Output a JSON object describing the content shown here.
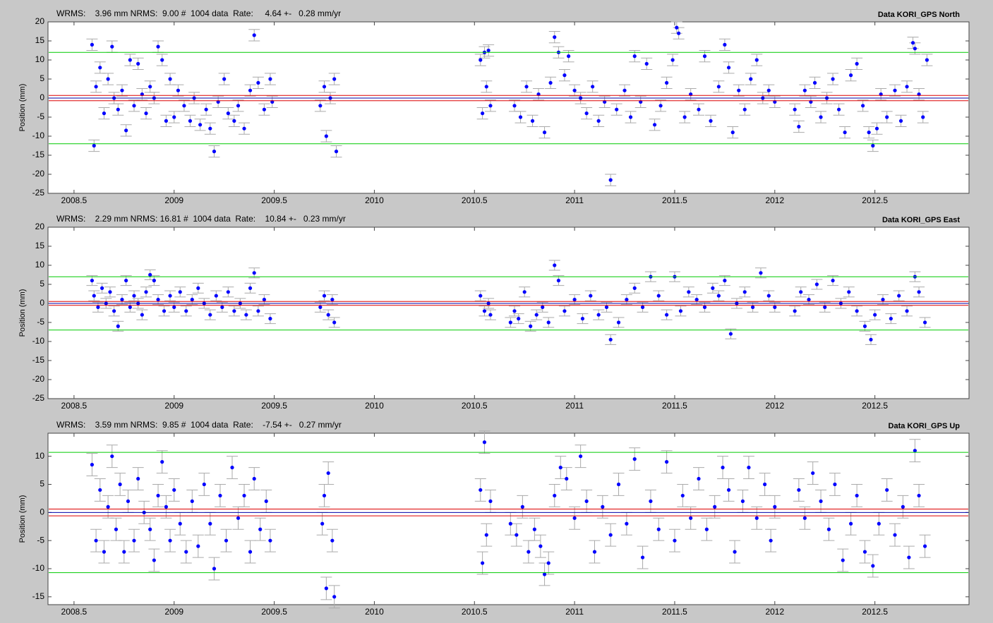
{
  "chart_data": [
    {
      "type": "scatter",
      "title": "Data KORI_GPS North",
      "subtitle": "WRMS:    3.96 mm NRMS:  9.00 #  1004 data  Rate:     4.64 +-   0.28 mm/yr",
      "y_label": "Position (mm)",
      "color": "#0000ff",
      "error": 1.5,
      "error_color": "#aaaaaa",
      "xlim": [
        2008.37,
        2012.97
      ],
      "ylim": [
        -25,
        20
      ],
      "xticks": [
        2008.5,
        2009,
        2009.5,
        2010,
        2010.5,
        2011,
        2011.5,
        2012,
        2012.5
      ],
      "yticks": [
        -25,
        -20,
        -15,
        -10,
        -5,
        0,
        5,
        10,
        15,
        20
      ],
      "hlines": [
        {
          "value": 12,
          "color": "#00cc00"
        },
        {
          "value": -12,
          "color": "#00cc00"
        },
        {
          "value": 0.7,
          "color": "#dd0000"
        },
        {
          "value": -0.7,
          "color": "#dd0000"
        },
        {
          "value": 0,
          "color": "#0000aa"
        }
      ],
      "x": [
        2008.59,
        2008.6,
        2008.61,
        2008.63,
        2008.65,
        2008.67,
        2008.69,
        2008.7,
        2008.72,
        2008.74,
        2008.76,
        2008.78,
        2008.8,
        2008.82,
        2008.84,
        2008.86,
        2008.88,
        2008.9,
        2008.92,
        2008.94,
        2008.96,
        2008.98,
        2009.0,
        2009.02,
        2009.05,
        2009.08,
        2009.1,
        2009.13,
        2009.16,
        2009.18,
        2009.2,
        2009.22,
        2009.25,
        2009.27,
        2009.3,
        2009.32,
        2009.35,
        2009.38,
        2009.4,
        2009.42,
        2009.45,
        2009.48,
        2009.49,
        2009.73,
        2009.75,
        2009.76,
        2009.78,
        2009.8,
        2009.81,
        2010.53,
        2010.54,
        2010.55,
        2010.56,
        2010.57,
        2010.58,
        2010.7,
        2010.73,
        2010.76,
        2010.79,
        2010.82,
        2010.85,
        2010.88,
        2010.9,
        2010.92,
        2010.95,
        2010.97,
        2011.0,
        2011.03,
        2011.06,
        2011.09,
        2011.12,
        2011.15,
        2011.18,
        2011.21,
        2011.25,
        2011.28,
        2011.3,
        2011.33,
        2011.36,
        2011.4,
        2011.43,
        2011.46,
        2011.49,
        2011.51,
        2011.52,
        2011.55,
        2011.58,
        2011.62,
        2011.65,
        2011.68,
        2011.72,
        2011.75,
        2011.77,
        2011.79,
        2011.82,
        2011.85,
        2011.88,
        2011.91,
        2011.94,
        2011.97,
        2012.0,
        2012.1,
        2012.12,
        2012.15,
        2012.18,
        2012.2,
        2012.23,
        2012.26,
        2012.29,
        2012.32,
        2012.35,
        2012.38,
        2012.41,
        2012.44,
        2012.47,
        2012.49,
        2012.51,
        2012.53,
        2012.56,
        2012.6,
        2012.63,
        2012.66,
        2012.69,
        2012.7,
        2012.72,
        2012.74,
        2012.76
      ],
      "values": [
        14,
        -12.5,
        3,
        8,
        -4,
        5,
        13.5,
        0,
        -3,
        2,
        -8.5,
        10,
        -2,
        9,
        1,
        -4,
        3,
        0,
        13.5,
        10,
        -6,
        5,
        -5,
        2,
        -2,
        -6,
        0,
        -7,
        -3,
        -8,
        -14,
        -1,
        5,
        -4,
        -6,
        -2,
        -8,
        2,
        16.5,
        4,
        -3,
        5,
        -1,
        -2,
        3,
        -10,
        0,
        5,
        -14,
        10,
        -4,
        12,
        3,
        12.5,
        -2,
        -2,
        -5,
        3,
        -6,
        1,
        -9,
        4,
        16,
        12,
        6,
        11,
        2,
        0,
        -4,
        3,
        -6,
        -1,
        -21.5,
        -3,
        2,
        -5,
        11,
        -1,
        9,
        -7,
        -2,
        4,
        10,
        18.5,
        17,
        -5,
        1,
        -3,
        11,
        -6,
        3,
        14,
        8,
        -9,
        2,
        -3,
        5,
        10,
        0,
        2,
        -1,
        -3,
        -7.5,
        2,
        -1,
        4,
        -5,
        0,
        5,
        -3,
        -9,
        6,
        9,
        -2,
        -9,
        -12.5,
        -8,
        1,
        -5,
        2,
        -6,
        3,
        14.5,
        13,
        1,
        -5,
        10
      ]
    },
    {
      "type": "scatter",
      "title": "Data KORI_GPS East",
      "subtitle": "WRMS:    2.29 mm NRMS: 16.81 #  1004 data  Rate:    10.84 +-   0.23 mm/yr",
      "y_label": "Position (mm)",
      "color": "#0000ff",
      "error": 1.3,
      "error_color": "#aaaaaa",
      "xlim": [
        2008.37,
        2012.97
      ],
      "ylim": [
        -25,
        20
      ],
      "xticks": [
        2008.5,
        2009,
        2009.5,
        2010,
        2010.5,
        2011,
        2011.5,
        2012,
        2012.5
      ],
      "yticks": [
        -25,
        -20,
        -15,
        -10,
        -5,
        0,
        5,
        10,
        15,
        20
      ],
      "hlines": [
        {
          "value": 7,
          "color": "#00cc00"
        },
        {
          "value": -7,
          "color": "#00cc00"
        },
        {
          "value": 0.5,
          "color": "#dd0000"
        },
        {
          "value": -0.5,
          "color": "#dd0000"
        },
        {
          "value": 0,
          "color": "#0000aa"
        }
      ],
      "x": [
        2008.59,
        2008.6,
        2008.62,
        2008.64,
        2008.66,
        2008.68,
        2008.7,
        2008.72,
        2008.74,
        2008.76,
        2008.78,
        2008.8,
        2008.82,
        2008.84,
        2008.86,
        2008.88,
        2008.9,
        2008.92,
        2008.95,
        2008.98,
        2009.0,
        2009.03,
        2009.06,
        2009.09,
        2009.12,
        2009.15,
        2009.18,
        2009.21,
        2009.24,
        2009.27,
        2009.3,
        2009.33,
        2009.36,
        2009.38,
        2009.4,
        2009.42,
        2009.45,
        2009.48,
        2009.73,
        2009.75,
        2009.77,
        2009.79,
        2009.8,
        2010.53,
        2010.55,
        2010.57,
        2010.58,
        2010.68,
        2010.7,
        2010.72,
        2010.75,
        2010.78,
        2010.81,
        2010.84,
        2010.87,
        2010.9,
        2010.92,
        2010.95,
        2011.0,
        2011.04,
        2011.08,
        2011.12,
        2011.16,
        2011.18,
        2011.22,
        2011.26,
        2011.3,
        2011.34,
        2011.38,
        2011.42,
        2011.46,
        2011.5,
        2011.53,
        2011.57,
        2011.61,
        2011.65,
        2011.69,
        2011.72,
        2011.75,
        2011.78,
        2011.81,
        2011.85,
        2011.89,
        2011.93,
        2011.97,
        2012.0,
        2012.1,
        2012.13,
        2012.17,
        2012.21,
        2012.25,
        2012.29,
        2012.33,
        2012.37,
        2012.41,
        2012.45,
        2012.48,
        2012.5,
        2012.54,
        2012.58,
        2012.62,
        2012.66,
        2012.7,
        2012.72,
        2012.75
      ],
      "values": [
        6,
        2,
        -1,
        4,
        0,
        3,
        -2,
        -6,
        1,
        6,
        -1,
        2,
        0,
        -3,
        3,
        7.5,
        6,
        1,
        -2,
        2,
        -1,
        3,
        -2,
        1,
        4,
        0,
        -3,
        2,
        -1,
        3,
        -2,
        0,
        -3,
        4,
        8,
        -2,
        1,
        -4,
        -1,
        2,
        -3,
        1,
        -5,
        2,
        -2,
        0,
        -3,
        -5,
        -2,
        -4,
        3,
        -6,
        -3,
        -1,
        -5,
        10,
        6,
        -2,
        1,
        -4,
        2,
        -3,
        -1,
        -9.5,
        -5,
        1,
        4,
        -1,
        7,
        2,
        -3,
        7,
        -2,
        3,
        1,
        -1,
        4,
        2,
        6,
        -8,
        0,
        3,
        -1,
        8,
        2,
        -1,
        -2,
        3,
        1,
        5,
        -1,
        6,
        0,
        3,
        -2,
        -6,
        -9.5,
        -3,
        1,
        -4,
        2,
        -2,
        7,
        3,
        -5
      ]
    },
    {
      "type": "scatter",
      "title": "Data KORI_GPS Up",
      "subtitle": "WRMS:    3.59 mm NRMS:  9.85 #  1004 data  Rate:    -7.54 +-   0.27 mm/yr",
      "y_label": "Position (mm)",
      "color": "#0000ff",
      "error": 2,
      "error_color": "#aaaaaa",
      "xlim": [
        2008.37,
        2012.97
      ],
      "ylim": [
        -16.4,
        14.1
      ],
      "xticks": [
        2008.5,
        2009,
        2009.5,
        2010,
        2010.5,
        2011,
        2011.5,
        2012,
        2012.5
      ],
      "yticks": [
        -15,
        -10,
        -5,
        0,
        5,
        10
      ],
      "hlines": [
        {
          "value": 10.7,
          "color": "#00cc00"
        },
        {
          "value": -10.7,
          "color": "#00cc00"
        },
        {
          "value": 0.6,
          "color": "#dd0000"
        },
        {
          "value": -0.6,
          "color": "#dd0000"
        },
        {
          "value": 0,
          "color": "#0000aa"
        }
      ],
      "x": [
        2008.59,
        2008.61,
        2008.63,
        2008.65,
        2008.67,
        2008.69,
        2008.71,
        2008.73,
        2008.75,
        2008.77,
        2008.8,
        2008.82,
        2008.85,
        2008.88,
        2008.9,
        2008.92,
        2008.94,
        2008.96,
        2008.98,
        2009.0,
        2009.03,
        2009.06,
        2009.09,
        2009.12,
        2009.15,
        2009.18,
        2009.2,
        2009.23,
        2009.26,
        2009.29,
        2009.32,
        2009.35,
        2009.38,
        2009.4,
        2009.43,
        2009.46,
        2009.48,
        2009.74,
        2009.75,
        2009.76,
        2009.77,
        2009.79,
        2009.8,
        2010.53,
        2010.54,
        2010.55,
        2010.56,
        2010.58,
        2010.68,
        2010.71,
        2010.74,
        2010.77,
        2010.8,
        2010.83,
        2010.85,
        2010.87,
        2010.9,
        2010.93,
        2010.96,
        2011.0,
        2011.03,
        2011.06,
        2011.1,
        2011.14,
        2011.18,
        2011.22,
        2011.26,
        2011.3,
        2011.34,
        2011.38,
        2011.42,
        2011.46,
        2011.5,
        2011.54,
        2011.58,
        2011.62,
        2011.66,
        2011.7,
        2011.74,
        2011.77,
        2011.8,
        2011.84,
        2011.87,
        2011.91,
        2011.95,
        2011.98,
        2012.0,
        2012.12,
        2012.15,
        2012.19,
        2012.23,
        2012.27,
        2012.3,
        2012.34,
        2012.38,
        2012.41,
        2012.45,
        2012.49,
        2012.52,
        2012.56,
        2012.6,
        2012.64,
        2012.67,
        2012.7,
        2012.72,
        2012.75
      ],
      "values": [
        8.5,
        -5,
        4,
        -7,
        1,
        10,
        -3,
        5,
        -7,
        2,
        -5,
        6,
        0,
        -3,
        -8.5,
        3,
        9,
        1,
        -5,
        4,
        -2,
        -7,
        2,
        -6,
        5,
        -2,
        -10,
        3,
        -5,
        8,
        -1,
        3,
        -7,
        6,
        -3,
        2,
        -5,
        -2,
        3,
        -13.5,
        7,
        -5,
        -15,
        4,
        -9,
        12.5,
        -4,
        2,
        -2,
        -4,
        1,
        -7,
        -3,
        -6,
        -11,
        -9,
        3,
        8,
        6,
        -1,
        10,
        2,
        -7,
        1,
        -4,
        5,
        -2,
        9.5,
        -8,
        2,
        -3,
        9,
        -5,
        3,
        -1,
        6,
        -3,
        1,
        8,
        4,
        -7,
        2,
        8,
        -1,
        5,
        -5,
        1,
        4,
        -1,
        7,
        2,
        -3,
        5,
        -8.5,
        -2,
        3,
        -7,
        -9.5,
        -2,
        4,
        -4,
        1,
        -8,
        11,
        3,
        -6
      ]
    }
  ]
}
